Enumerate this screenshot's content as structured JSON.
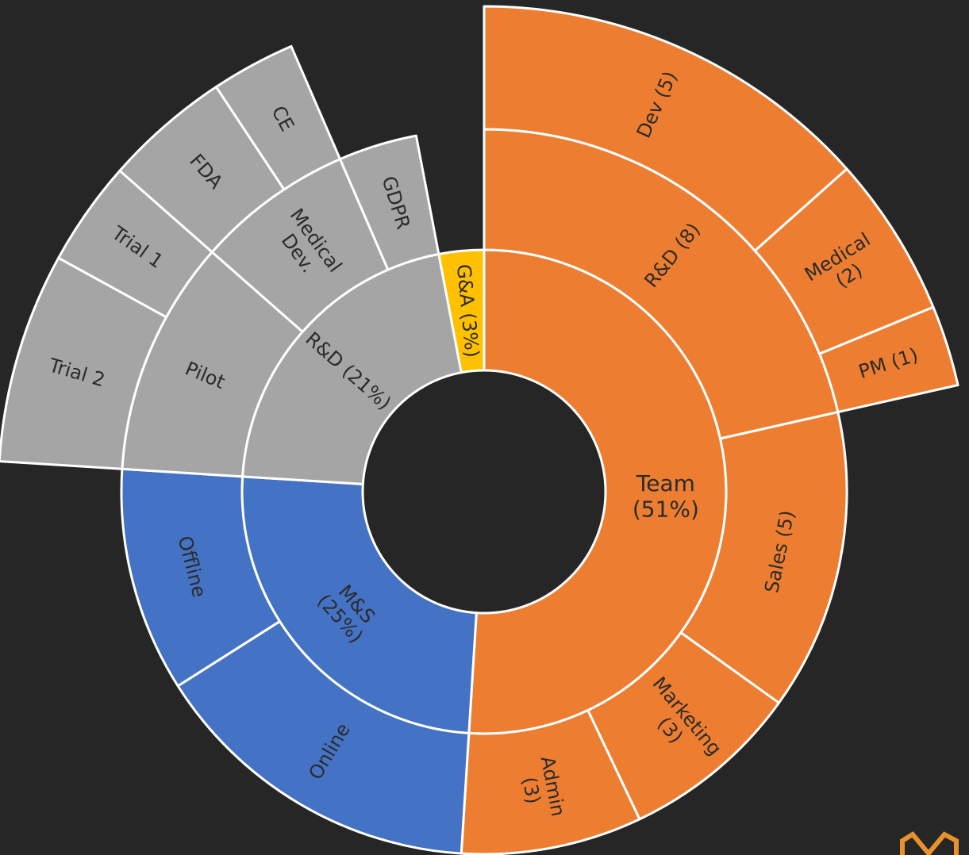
{
  "chart_data": {
    "type": "sunburst",
    "nodes": [
      {
        "label": [
          "Team",
          "(51%)"
        ],
        "value": 51,
        "color": "#ed7d31",
        "children": [
          {
            "label": [
              "R&D (8)"
            ],
            "value": 8,
            "color": "#ed7d31",
            "children": [
              {
                "label": [
                  "Dev (5)"
                ],
                "value": 5,
                "color": "#ed7d31"
              },
              {
                "label": [
                  "Medical",
                  "(2)"
                ],
                "value": 2,
                "color": "#ed7d31"
              },
              {
                "label": [
                  "PM (1)"
                ],
                "value": 1,
                "color": "#ed7d31"
              }
            ]
          },
          {
            "label": [
              "Sales (5)"
            ],
            "value": 5,
            "color": "#ed7d31"
          },
          {
            "label": [
              "Marketing",
              "(3)"
            ],
            "value": 3,
            "color": "#ed7d31"
          },
          {
            "label": [
              "Admin",
              "(3)"
            ],
            "value": 3,
            "color": "#ed7d31"
          }
        ]
      },
      {
        "label": [
          "M&S",
          "(25%)"
        ],
        "value": 25,
        "color": "#4472c4",
        "children": [
          {
            "label": [
              "Online"
            ],
            "value": 6,
            "color": "#4472c4"
          },
          {
            "label": [
              "Offline"
            ],
            "value": 4,
            "color": "#4472c4"
          }
        ]
      },
      {
        "label": [
          "R&D (21%)"
        ],
        "value": 21,
        "color": "#a5a5a5",
        "children": [
          {
            "label": [
              "Pilot"
            ],
            "value": 3,
            "color": "#a5a5a5",
            "children": [
              {
                "label": [
                  "Trial 2"
                ],
                "value": 2,
                "color": "#a5a5a5"
              },
              {
                "label": [
                  "Trial 1"
                ],
                "value": 1,
                "color": "#a5a5a5"
              }
            ]
          },
          {
            "label": [
              "Medical",
              "Dev."
            ],
            "value": 2,
            "color": "#a5a5a5",
            "children": [
              {
                "label": [
                  "FDA"
                ],
                "value": 1.2,
                "color": "#a5a5a5"
              },
              {
                "label": [
                  "CE"
                ],
                "value": 0.8,
                "color": "#a5a5a5"
              }
            ]
          },
          {
            "label": [
              "GDPR"
            ],
            "value": 1,
            "color": "#a5a5a5"
          }
        ]
      },
      {
        "label": [
          "G&A (3%)"
        ],
        "value": 3,
        "color": "#ffc000"
      }
    ]
  }
}
